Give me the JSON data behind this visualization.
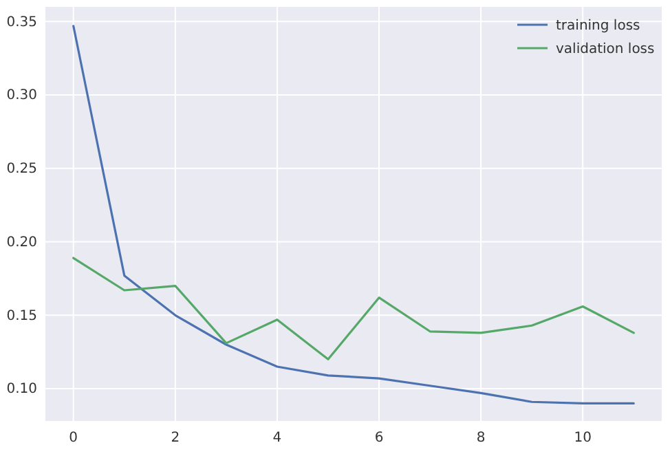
{
  "chart_data": {
    "type": "line",
    "x": [
      0,
      1,
      2,
      3,
      4,
      5,
      6,
      7,
      8,
      9,
      10,
      11
    ],
    "series": [
      {
        "name": "training loss",
        "color": "#4c72b0",
        "values": [
          0.347,
          0.177,
          0.15,
          0.13,
          0.115,
          0.109,
          0.107,
          0.102,
          0.097,
          0.091,
          0.09,
          0.09
        ]
      },
      {
        "name": "validation loss",
        "color": "#55a868",
        "values": [
          0.189,
          0.167,
          0.17,
          0.131,
          0.147,
          0.12,
          0.162,
          0.139,
          0.138,
          0.143,
          0.156,
          0.138
        ]
      }
    ],
    "xlim": [
      -0.55,
      11.55
    ],
    "xticks": [
      0,
      2,
      4,
      6,
      8,
      10
    ],
    "ylim": [
      0.078,
      0.36
    ],
    "yticks": [
      {
        "value": 0.1,
        "label": "0.10"
      },
      {
        "value": 0.15,
        "label": "0.15"
      },
      {
        "value": 0.2,
        "label": "0.20"
      },
      {
        "value": 0.25,
        "label": "0.25"
      },
      {
        "value": 0.3,
        "label": "0.30"
      },
      {
        "value": 0.35,
        "label": "0.35"
      }
    ],
    "grid": true,
    "legend": "top right",
    "marker": "none",
    "line_style": "solid"
  }
}
